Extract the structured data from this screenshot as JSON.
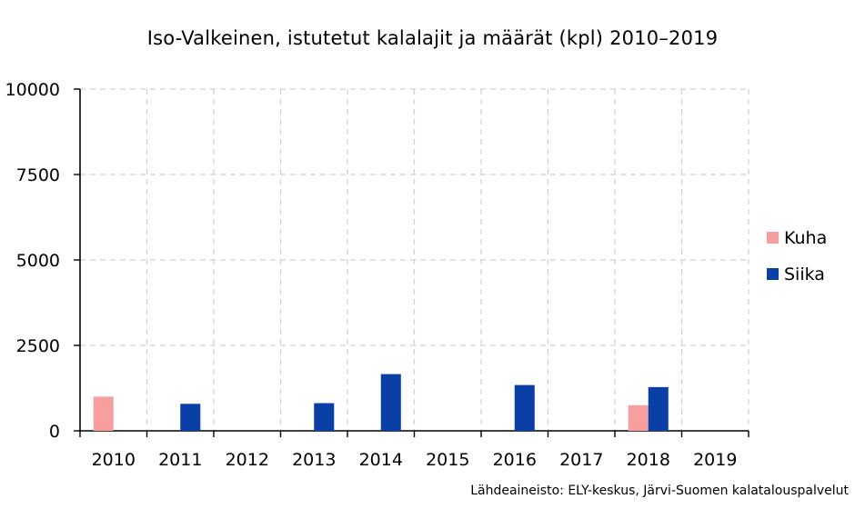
{
  "chart_data": {
    "type": "bar",
    "title": "Iso-Valkeinen, istutetut kalalajit ja määrät (kpl) 2010–2019",
    "categories": [
      "2010",
      "2011",
      "2012",
      "2013",
      "2014",
      "2015",
      "2016",
      "2017",
      "2018",
      "2019"
    ],
    "series": [
      {
        "name": "Kuha",
        "color": "#f79e9e",
        "values": [
          1000,
          null,
          null,
          null,
          null,
          null,
          null,
          null,
          750,
          null
        ]
      },
      {
        "name": "Siika",
        "color": "#0a3fa6",
        "values": [
          null,
          790,
          null,
          810,
          1660,
          null,
          1340,
          null,
          1280,
          null
        ]
      }
    ],
    "yticks": [
      "0",
      "2500",
      "5000",
      "7500",
      "10000"
    ],
    "ylim": [
      0,
      10000
    ],
    "xlabel": "",
    "ylabel": "",
    "grid": true,
    "legend_position": "right",
    "source": "Lähdeaineisto: ELY-keskus, Järvi-Suomen kalatalouspalvelut"
  }
}
